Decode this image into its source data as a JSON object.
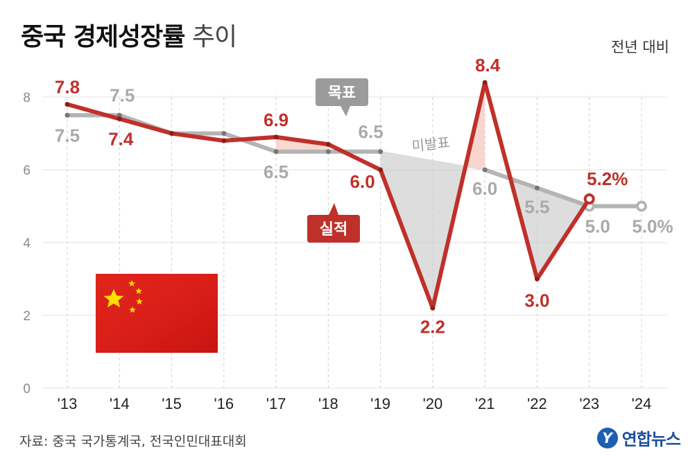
{
  "header": {
    "title_bold": "중국 경제성장률",
    "title_light": "추이",
    "unit": "전년 대비"
  },
  "footer": {
    "source": "자료: 중국 국가통계국, 전국인민대표대회",
    "logo_text": "연합뉴스",
    "logo_mark": "Y"
  },
  "flag_icon": "china-flag",
  "chart_data": {
    "type": "line",
    "x": [
      "'13",
      "'14",
      "'15",
      "'16",
      "'17",
      "'18",
      "'19",
      "'20",
      "'21",
      "'22",
      "'23",
      "'24"
    ],
    "ylim": [
      0,
      8
    ],
    "yticks": [
      0,
      2,
      4,
      6,
      8
    ],
    "grid": true,
    "series": [
      {
        "name": "목표",
        "color": "#b4b4b4",
        "values": [
          7.5,
          7.5,
          7.0,
          7.0,
          6.5,
          6.5,
          6.5,
          null,
          6.0,
          5.5,
          5.0,
          5.0
        ],
        "labels": [
          "7.5",
          "7.5",
          "",
          "",
          "6.5",
          "",
          "6.5",
          "",
          "6.0",
          "5.5",
          "5.0",
          "5.0%"
        ]
      },
      {
        "name": "실적",
        "color": "#c0302a",
        "values": [
          7.8,
          7.4,
          7.0,
          6.8,
          6.9,
          6.7,
          6.0,
          2.2,
          8.4,
          3.0,
          5.2,
          null
        ],
        "labels": [
          "7.8",
          "7.4",
          "",
          "",
          "6.9",
          "",
          "6.0",
          "2.2",
          "8.4",
          "3.0",
          "5.2%",
          ""
        ]
      }
    ],
    "annotations": [
      "목표",
      "실적",
      "미발표"
    ]
  }
}
